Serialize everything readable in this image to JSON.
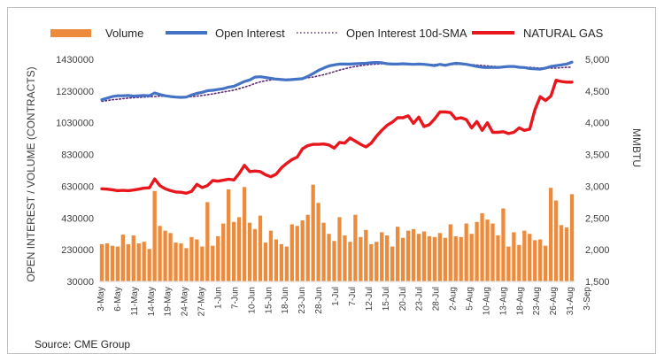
{
  "source": "Source: CME Group",
  "chart_data": {
    "type": "bar+line",
    "legend": [
      {
        "name": "Volume",
        "color": "#ED8B3C",
        "style": "bar"
      },
      {
        "name": "Open Interest",
        "color": "#4472C4",
        "style": "line"
      },
      {
        "name": "Open Interest 10d-SMA",
        "color": "#5B2C6F",
        "style": "dotted"
      },
      {
        "name": "NATURAL GAS",
        "color": "#E8171D",
        "style": "line"
      }
    ],
    "legend_position": "top",
    "ylabel_left": "OPEN INTEREST / VOLUME (CONTRACTS)",
    "ylabel_right": "MMBTU",
    "ylim_left": [
      30000,
      1430000
    ],
    "yticks_left": [
      "30000",
      "230000",
      "430000",
      "630000",
      "830000",
      "1030000",
      "1230000",
      "1430000"
    ],
    "ylim_right": [
      1500,
      5000
    ],
    "yticks_right": [
      "1,500",
      "2,000",
      "2,500",
      "3,000",
      "3,500",
      "4,000",
      "4,500",
      "5,000"
    ],
    "x_ticks": [
      "3-May",
      "6-May",
      "11-May",
      "14-May",
      "19-May",
      "24-May",
      "27-May",
      "1-Jun",
      "7-Jun",
      "10-Jun",
      "15-Jun",
      "18-Jun",
      "23-Jun",
      "28-Jun",
      "1-Jul",
      "7-Jul",
      "12-Jul",
      "15-Jul",
      "20-Jul",
      "23-Jul",
      "28-Jul",
      "2-Aug",
      "5-Aug",
      "10-Aug",
      "13-Aug",
      "18-Aug",
      "23-Aug",
      "26-Aug",
      "31-Aug",
      "3-Sep"
    ],
    "grid": false,
    "volume": [
      265000,
      270000,
      255000,
      250000,
      325000,
      265000,
      320000,
      270000,
      280000,
      235000,
      600000,
      380000,
      350000,
      335000,
      275000,
      270000,
      240000,
      310000,
      295000,
      250000,
      530000,
      255000,
      315000,
      395000,
      610000,
      405000,
      435000,
      625000,
      400000,
      360000,
      445000,
      275000,
      350000,
      295000,
      265000,
      250000,
      390000,
      380000,
      415000,
      450000,
      640000,
      525000,
      400000,
      330000,
      285000,
      435000,
      320000,
      280000,
      450000,
      310000,
      355000,
      265000,
      280000,
      340000,
      320000,
      250000,
      375000,
      305000,
      350000,
      360000,
      330000,
      345000,
      315000,
      310000,
      335000,
      305000,
      390000,
      315000,
      310000,
      395000,
      330000,
      405000,
      460000,
      420000,
      395000,
      320000,
      490000,
      250000,
      340000,
      260000,
      350000,
      330000,
      290000,
      295000,
      255000,
      620000,
      540000,
      385000,
      370000,
      580000
    ],
    "open_interest": [
      1175000,
      1185000,
      1195000,
      1200000,
      1200000,
      1202000,
      1198000,
      1200000,
      1202000,
      1200000,
      1218000,
      1208000,
      1200000,
      1195000,
      1192000,
      1190000,
      1192000,
      1205000,
      1215000,
      1222000,
      1232000,
      1235000,
      1240000,
      1245000,
      1255000,
      1260000,
      1275000,
      1290000,
      1300000,
      1318000,
      1320000,
      1315000,
      1310000,
      1305000,
      1302000,
      1300000,
      1302000,
      1305000,
      1308000,
      1322000,
      1340000,
      1360000,
      1375000,
      1388000,
      1395000,
      1400000,
      1400000,
      1400000,
      1402000,
      1404000,
      1405000,
      1408000,
      1410000,
      1408000,
      1402000,
      1400000,
      1400000,
      1402000,
      1400000,
      1398000,
      1400000,
      1398000,
      1395000,
      1390000,
      1398000,
      1392000,
      1400000,
      1405000,
      1402000,
      1398000,
      1392000,
      1385000,
      1380000,
      1378000,
      1380000,
      1378000,
      1382000,
      1385000,
      1385000,
      1380000,
      1378000,
      1372000,
      1370000,
      1368000,
      1375000,
      1385000,
      1390000,
      1395000,
      1400000,
      1412000
    ],
    "open_interest_10d_sma": [
      1165000,
      1170000,
      1175000,
      1178000,
      1182000,
      1185000,
      1188000,
      1190000,
      1192000,
      1194000,
      1196000,
      1198000,
      1197000,
      1196000,
      1194000,
      1192000,
      1192000,
      1195000,
      1198000,
      1202000,
      1207000,
      1212000,
      1218000,
      1224000,
      1230000,
      1236000,
      1245000,
      1255000,
      1265000,
      1278000,
      1288000,
      1295000,
      1300000,
      1304000,
      1305000,
      1305000,
      1306000,
      1308000,
      1310000,
      1314000,
      1318000,
      1325000,
      1333000,
      1342000,
      1352000,
      1362000,
      1370000,
      1378000,
      1385000,
      1390000,
      1395000,
      1398000,
      1400000,
      1402000,
      1402000,
      1402000,
      1402000,
      1401000,
      1400000,
      1400000,
      1400000,
      1400000,
      1398000,
      1397000,
      1396000,
      1396000,
      1397000,
      1398000,
      1398000,
      1397000,
      1396000,
      1394000,
      1391000,
      1388000,
      1386000,
      1384000,
      1383000,
      1382000,
      1382000,
      1381000,
      1380000,
      1379000,
      1377000,
      1375000,
      1374000,
      1374000,
      1375000,
      1377000,
      1379000,
      1381000
    ],
    "natural_gas": [
      2960,
      2955,
      2945,
      2930,
      2935,
      2930,
      2940,
      2955,
      2970,
      2975,
      3115,
      3010,
      2960,
      2930,
      2910,
      2905,
      2890,
      2920,
      3030,
      2980,
      3010,
      3090,
      3080,
      3095,
      3110,
      3100,
      3200,
      3330,
      3230,
      3240,
      3230,
      3180,
      3150,
      3190,
      3290,
      3360,
      3420,
      3460,
      3590,
      3640,
      3660,
      3660,
      3665,
      3650,
      3600,
      3690,
      3680,
      3760,
      3710,
      3660,
      3620,
      3680,
      3790,
      3880,
      3960,
      4010,
      4080,
      4080,
      4110,
      3990,
      4090,
      3940,
      3970,
      4060,
      4170,
      4170,
      4160,
      4060,
      4080,
      4050,
      3920,
      4020,
      3880,
      4000,
      3850,
      3850,
      3860,
      3830,
      3850,
      3920,
      3880,
      3900,
      4210,
      4410,
      4350,
      4420,
      4670,
      4650,
      4640,
      4640
    ]
  }
}
